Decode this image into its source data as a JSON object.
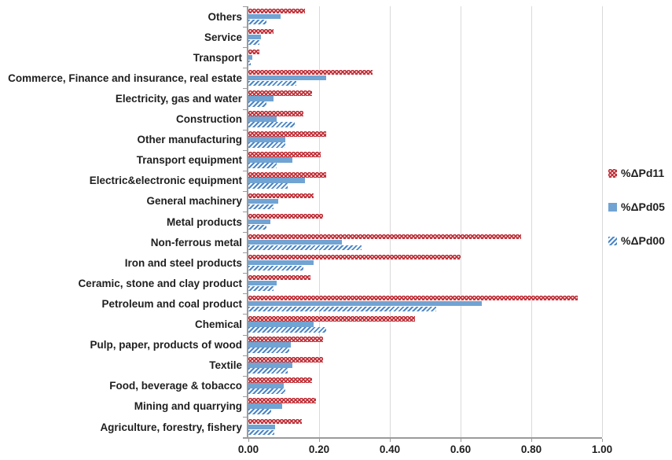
{
  "chart_data": {
    "type": "bar",
    "orientation": "horizontal",
    "title": "",
    "xlabel": "",
    "ylabel": "",
    "grid": true,
    "legend_position": "right",
    "xlim": [
      0,
      1.0
    ],
    "xtick_labels": [
      "0.00",
      "0.20",
      "0.40",
      "0.60",
      "0.80",
      "1.00"
    ],
    "xtick_values": [
      0,
      0.2,
      0.4,
      0.6,
      0.8,
      1.0
    ],
    "categories": [
      "Others",
      "Service",
      "Transport",
      "Commerce, Finance and insurance, real estate",
      "Electricity, gas and water",
      "Construction",
      "Other manufacturing",
      "Transport equipment",
      "Electric&electronic equipment",
      "General machinery",
      "Metal products",
      "Non-ferrous metal",
      "Iron and steel products",
      "Ceramic, stone and clay product",
      "Petroleum and coal product",
      "Chemical",
      "Pulp, paper, products of wood",
      "Textile",
      "Food, beverage & tobacco",
      "Mining and quarrying",
      "Agriculture, forestry, fishery"
    ],
    "series": [
      {
        "name": "%ΔPd11",
        "style": "red-dotted",
        "color": "#c0323a",
        "values": [
          0.16,
          0.07,
          0.03,
          0.35,
          0.18,
          0.155,
          0.22,
          0.205,
          0.22,
          0.185,
          0.21,
          0.77,
          0.6,
          0.175,
          0.93,
          0.47,
          0.21,
          0.21,
          0.18,
          0.19,
          0.15
        ]
      },
      {
        "name": "%ΔPd05",
        "style": "blue-solid",
        "color": "#71a3d3",
        "values": [
          0.09,
          0.035,
          0.01,
          0.22,
          0.07,
          0.08,
          0.105,
          0.125,
          0.16,
          0.085,
          0.063,
          0.265,
          0.185,
          0.08,
          0.66,
          0.185,
          0.12,
          0.125,
          0.1,
          0.095,
          0.075
        ]
      },
      {
        "name": "%ΔPd00",
        "style": "blue-hatched",
        "color": "#4a86c6",
        "values": [
          0.05,
          0.03,
          0.007,
          0.135,
          0.05,
          0.13,
          0.105,
          0.08,
          0.11,
          0.07,
          0.05,
          0.32,
          0.155,
          0.07,
          0.53,
          0.22,
          0.115,
          0.11,
          0.105,
          0.065,
          0.073
        ]
      }
    ],
    "colors": {
      "pd11_red": "#c0323a",
      "pd05_blue": "#71a3d3",
      "pd00_blue": "#4a86c6",
      "gridline": "#d9d9d9",
      "axis": "#9b9b9b",
      "text": "#1f1f1f"
    }
  }
}
